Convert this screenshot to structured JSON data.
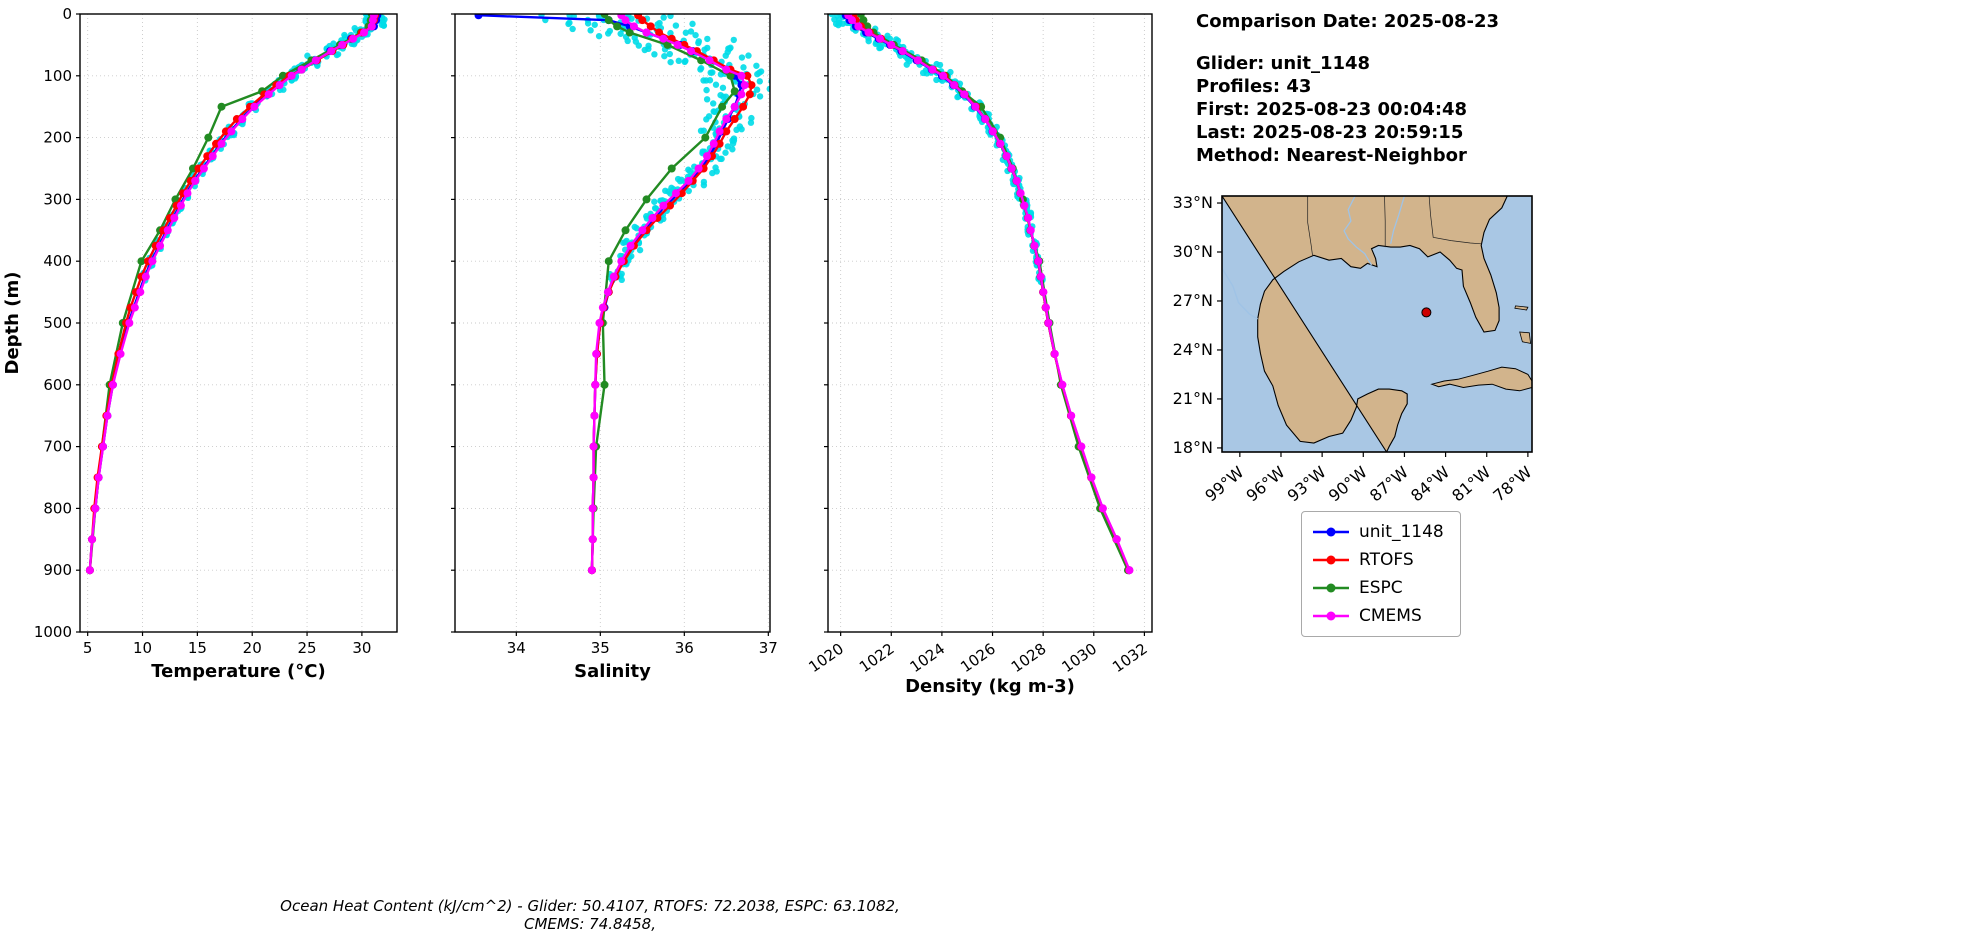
{
  "info_panel": {
    "comparison_date": "Comparison Date: 2025-08-23",
    "lines": [
      "Glider: unit_1148",
      "Profiles: 43",
      "First: 2025-08-23 00:04:48",
      "Last: 2025-08-23 20:59:15",
      "Method: Nearest-Neighbor"
    ]
  },
  "footer": "Ocean Heat Content (kJ/cm^2) - Glider: 50.4107,  RTOFS: 72.2038,  ESPC: 63.1082,  CMEMS: 74.8458,",
  "legend": {
    "entries": [
      {
        "label": "unit_1148",
        "color": "#0000ff"
      },
      {
        "label": "RTOFS",
        "color": "#ff0000"
      },
      {
        "label": "ESPC",
        "color": "#228b22"
      },
      {
        "label": "CMEMS",
        "color": "#ff00ff"
      }
    ]
  },
  "map": {
    "extent_lon": [
      -100.3,
      -77.7
    ],
    "extent_lat": [
      17.75,
      33.43
    ],
    "lat_ticks": [
      33,
      30,
      27,
      24,
      21,
      18
    ],
    "lat_tick_labels": [
      "33°N",
      "30°N",
      "27°N",
      "24°N",
      "21°N",
      "18°N"
    ],
    "lon_ticks": [
      -99,
      -96,
      -93,
      -90,
      -87,
      -84,
      -81,
      -78
    ],
    "lon_tick_labels": [
      "99°W",
      "96°W",
      "93°W",
      "90°W",
      "87°W",
      "84°W",
      "81°W",
      "78°W"
    ],
    "marker": {
      "lon": -85.4,
      "lat": 26.3
    },
    "land_color": "#d2b48c",
    "water_color": "#a9c7e4",
    "marker_color": "#cc0000"
  },
  "chart_data": {
    "type": "line",
    "scatter_color": "#00dce8",
    "draw_order": [
      0,
      2,
      1,
      3
    ],
    "depth_axis": {
      "label": "Depth (m)",
      "ylim": [
        0,
        1000
      ],
      "yticks": [
        0,
        100,
        200,
        300,
        400,
        500,
        600,
        700,
        800,
        900,
        1000
      ]
    },
    "charts": [
      {
        "variable": "temperature",
        "xlabel": "Temperature (°C)",
        "xlim": [
          4.3,
          33.2
        ],
        "xticks": [
          5,
          10,
          15,
          20,
          25,
          30
        ],
        "rotate_xticklabels": false,
        "show_yticklabels": true,
        "scatter": {
          "amp0": 1.0,
          "amp1": 0.12,
          "max_depth": 430,
          "surface_center": null
        }
      },
      {
        "variable": "salinity",
        "xlabel": "Salinity",
        "xlim": [
          33.27,
          37.02
        ],
        "xticks": [
          34,
          35,
          36,
          37
        ],
        "rotate_xticklabels": false,
        "show_yticklabels": false,
        "scatter": {
          "amp0": 0.85,
          "amp1": 0.05,
          "max_depth": 430,
          "surface_center": 35.0
        }
      },
      {
        "variable": "density",
        "xlabel": "Density (kg m-3)",
        "xlim": [
          1019.5,
          1032.3
        ],
        "xticks": [
          1020,
          1022,
          1024,
          1026,
          1028,
          1030,
          1032
        ],
        "rotate_xticklabels": true,
        "show_yticklabels": false,
        "scatter": {
          "amp0": 0.55,
          "amp1": 0.07,
          "max_depth": 430,
          "surface_center": null
        }
      }
    ],
    "sources": [
      {
        "name": "unit_1148",
        "color": "#0000ff",
        "depths": [
          2,
          10,
          20,
          30,
          40,
          50,
          60,
          75,
          90,
          100,
          115,
          130,
          150,
          170,
          190,
          210,
          230,
          250,
          270,
          290,
          310,
          330,
          350,
          375,
          400,
          425,
          450,
          475,
          500,
          550,
          600,
          650,
          700,
          750,
          800,
          850,
          900
        ],
        "temperature": [
          31.4,
          31.3,
          31.1,
          30.1,
          29.0,
          28.1,
          27.1,
          25.7,
          24.4,
          23.5,
          22.4,
          21.4,
          20.1,
          19.0,
          18.0,
          17.1,
          16.3,
          15.5,
          14.7,
          14.0,
          13.4,
          12.8,
          12.2,
          11.5,
          10.8,
          10.2,
          9.7,
          9.2,
          8.7,
          7.9,
          7.3,
          6.8,
          6.4,
          6.0,
          5.7,
          5.4,
          5.2
        ],
        "salinity": [
          33.55,
          35.1,
          35.35,
          35.55,
          35.75,
          35.95,
          36.1,
          36.3,
          36.5,
          36.6,
          36.68,
          36.65,
          36.6,
          36.52,
          36.45,
          36.38,
          36.3,
          36.2,
          36.07,
          35.93,
          35.78,
          35.64,
          35.52,
          35.38,
          35.27,
          35.18,
          35.1,
          35.05,
          35.0,
          34.96,
          34.94,
          34.93,
          34.92,
          34.92,
          34.91,
          34.91,
          34.9
        ],
        "density": [
          1020.2,
          1020.35,
          1020.6,
          1021.0,
          1021.5,
          1021.95,
          1022.4,
          1023.0,
          1023.6,
          1024.0,
          1024.45,
          1024.85,
          1025.3,
          1025.7,
          1026.0,
          1026.3,
          1026.55,
          1026.75,
          1026.95,
          1027.1,
          1027.25,
          1027.4,
          1027.5,
          1027.65,
          1027.8,
          1027.9,
          1028.0,
          1028.1,
          1028.2,
          1028.45,
          1028.75,
          1029.1,
          1029.5,
          1029.9,
          1030.35,
          1030.9,
          1031.4
        ]
      },
      {
        "name": "RTOFS",
        "color": "#ff0000",
        "depths": [
          2,
          10,
          20,
          30,
          40,
          50,
          60,
          75,
          90,
          100,
          115,
          130,
          150,
          170,
          190,
          210,
          230,
          250,
          270,
          290,
          310,
          330,
          350,
          375,
          400,
          425,
          450,
          475,
          500,
          550,
          600,
          650,
          700,
          750,
          800,
          850,
          900
        ],
        "temperature": [
          31.2,
          31.1,
          30.9,
          30.0,
          29.1,
          28.3,
          27.3,
          25.9,
          24.5,
          23.4,
          22.2,
          21.1,
          19.8,
          18.6,
          17.6,
          16.7,
          15.9,
          15.1,
          14.4,
          13.7,
          13.1,
          12.5,
          11.9,
          11.2,
          10.5,
          9.9,
          9.4,
          8.9,
          8.5,
          7.8,
          7.2,
          6.7,
          6.3,
          5.9,
          5.6,
          5.4,
          5.2
        ],
        "salinity": [
          35.45,
          35.5,
          35.6,
          35.7,
          35.85,
          36.0,
          36.15,
          36.35,
          36.55,
          36.75,
          36.8,
          36.78,
          36.7,
          36.6,
          36.5,
          36.42,
          36.33,
          36.23,
          36.1,
          35.97,
          35.83,
          35.68,
          35.55,
          35.4,
          35.28,
          35.18,
          35.1,
          35.04,
          35.0,
          34.96,
          34.94,
          34.93,
          34.92,
          34.92,
          34.91,
          34.91,
          34.9
        ],
        "density": [
          1020.5,
          1020.6,
          1020.8,
          1021.15,
          1021.6,
          1022.0,
          1022.45,
          1023.05,
          1023.65,
          1024.1,
          1024.5,
          1024.9,
          1025.35,
          1025.72,
          1026.02,
          1026.3,
          1026.55,
          1026.75,
          1026.95,
          1027.1,
          1027.25,
          1027.4,
          1027.5,
          1027.65,
          1027.8,
          1027.9,
          1028.0,
          1028.1,
          1028.2,
          1028.45,
          1028.75,
          1029.1,
          1029.5,
          1029.9,
          1030.35,
          1030.9,
          1031.4
        ]
      },
      {
        "name": "ESPC",
        "color": "#228b22",
        "depths": [
          0,
          10,
          20,
          30,
          50,
          75,
          100,
          125,
          150,
          200,
          250,
          300,
          350,
          400,
          500,
          600,
          700,
          800,
          900
        ],
        "temperature": [
          30.9,
          30.8,
          30.6,
          29.9,
          28.0,
          25.4,
          22.8,
          20.9,
          17.2,
          16.0,
          14.6,
          13.0,
          11.6,
          9.9,
          8.2,
          7.0,
          6.3,
          5.7,
          5.2
        ],
        "salinity": [
          35.05,
          35.1,
          35.2,
          35.35,
          35.8,
          36.2,
          36.55,
          36.6,
          36.45,
          36.25,
          35.85,
          35.55,
          35.3,
          35.1,
          35.03,
          35.05,
          34.95,
          34.92,
          34.9
        ],
        "density": [
          1020.8,
          1020.9,
          1021.05,
          1021.3,
          1022.1,
          1023.2,
          1024.15,
          1024.8,
          1025.55,
          1026.3,
          1026.8,
          1027.2,
          1027.5,
          1027.85,
          1028.25,
          1028.7,
          1029.4,
          1030.25,
          1031.35
        ]
      },
      {
        "name": "CMEMS",
        "color": "#ff00ff",
        "depths": [
          2,
          10,
          20,
          30,
          40,
          50,
          60,
          75,
          90,
          100,
          115,
          130,
          150,
          170,
          190,
          210,
          230,
          250,
          270,
          290,
          310,
          330,
          350,
          375,
          400,
          425,
          450,
          475,
          500,
          550,
          600,
          650,
          700,
          750,
          800,
          850,
          900
        ],
        "temperature": [
          31.1,
          31.0,
          30.9,
          30.2,
          29.2,
          28.2,
          27.2,
          25.8,
          24.5,
          23.6,
          22.5,
          21.5,
          20.2,
          19.1,
          18.1,
          17.2,
          16.4,
          15.6,
          14.8,
          14.1,
          13.5,
          12.9,
          12.3,
          11.6,
          10.9,
          10.3,
          9.8,
          9.3,
          8.8,
          8.0,
          7.3,
          6.8,
          6.4,
          6.0,
          5.7,
          5.4,
          5.2
        ],
        "salinity": [
          35.25,
          35.3,
          35.4,
          35.55,
          35.75,
          35.92,
          36.08,
          36.3,
          36.5,
          36.68,
          36.72,
          36.68,
          36.6,
          36.5,
          36.42,
          36.35,
          36.27,
          36.17,
          36.05,
          35.9,
          35.75,
          35.62,
          35.5,
          35.36,
          35.25,
          35.16,
          35.09,
          35.03,
          34.99,
          34.95,
          34.94,
          34.93,
          34.92,
          34.92,
          34.91,
          34.91,
          34.9
        ],
        "density": [
          1020.3,
          1020.45,
          1020.7,
          1021.1,
          1021.55,
          1022.0,
          1022.45,
          1023.05,
          1023.62,
          1024.05,
          1024.48,
          1024.88,
          1025.32,
          1025.71,
          1026.01,
          1026.31,
          1026.56,
          1026.76,
          1026.96,
          1027.11,
          1027.26,
          1027.41,
          1027.51,
          1027.66,
          1027.81,
          1027.91,
          1028.01,
          1028.11,
          1028.21,
          1028.46,
          1028.76,
          1029.11,
          1029.51,
          1029.91,
          1030.36,
          1030.91,
          1031.41
        ]
      }
    ]
  }
}
